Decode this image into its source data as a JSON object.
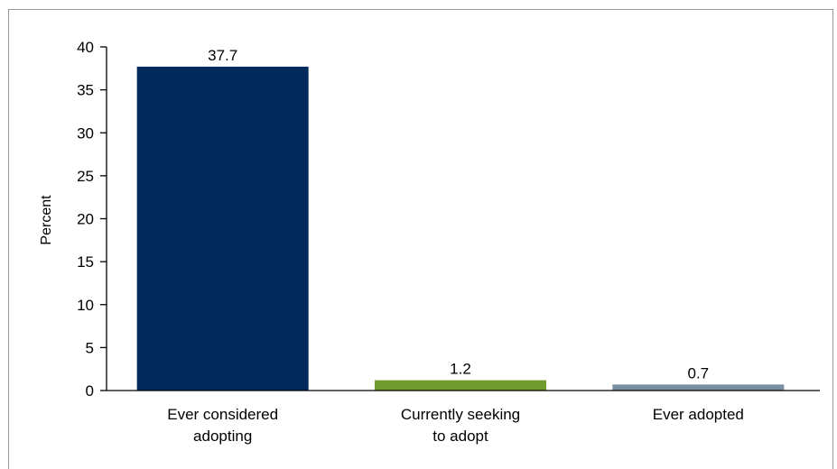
{
  "chart_data": {
    "type": "bar",
    "categories": [
      [
        "Ever considered",
        "adopting"
      ],
      [
        "Currently seeking",
        "to adopt"
      ],
      [
        "Ever adopted"
      ]
    ],
    "values": [
      37.7,
      1.2,
      0.7
    ],
    "value_labels": [
      "37.7",
      "1.2",
      "0.7"
    ],
    "bar_colors": [
      "#002a5c",
      "#6e9a2e",
      "#7a8ea3"
    ],
    "title": "",
    "xlabel": "",
    "ylabel": "Percent",
    "ylim": [
      0,
      40
    ],
    "yticks": [
      0,
      5,
      10,
      15,
      20,
      25,
      30,
      35,
      40
    ],
    "grid": false,
    "legend": "none"
  }
}
